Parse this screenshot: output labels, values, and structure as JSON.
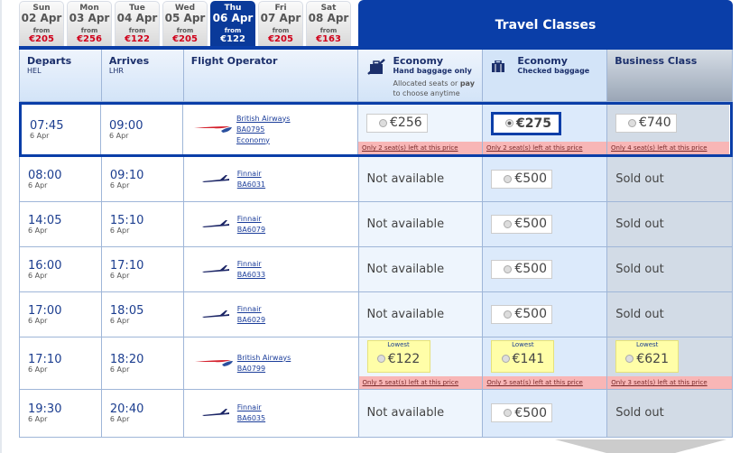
{
  "date_tabs": [
    {
      "day": "Sun",
      "date": "02 Apr",
      "from": "from",
      "price": "€205"
    },
    {
      "day": "Mon",
      "date": "03 Apr",
      "from": "from",
      "price": "€256"
    },
    {
      "day": "Tue",
      "date": "04 Apr",
      "from": "from",
      "price": "€122"
    },
    {
      "day": "Wed",
      "date": "05 Apr",
      "from": "from",
      "price": "€205"
    },
    {
      "day": "Thu",
      "date": "06 Apr",
      "from": "from",
      "price": "€122",
      "selected": true
    },
    {
      "day": "Fri",
      "date": "07 Apr",
      "from": "from",
      "price": "€205"
    },
    {
      "day": "Sat",
      "date": "08 Apr",
      "from": "from",
      "price": "€163"
    }
  ],
  "travel_classes_title": "Travel Classes",
  "headers": {
    "departs": "Departs",
    "departs_code": "HEL",
    "arrives": "Arrives",
    "arrives_code": "LHR",
    "operator": "Flight Operator",
    "econ_hand": "Economy",
    "econ_hand_sub": "Hand baggage only",
    "econ_hand_note_1": "Allocated seats or ",
    "econ_hand_note_bold": "pay",
    "econ_hand_note_2": " to choose anytime",
    "econ_checked": "Economy",
    "econ_checked_sub": "Checked baggage",
    "business": "Business Class"
  },
  "lowest_label": "Lowest",
  "flights": [
    {
      "dep": "07:45",
      "dep_date": "6 Apr",
      "arr": "09:00",
      "arr_date": "6 Apr",
      "airline": "British Airways",
      "flight": "BA0795",
      "cabin": "Economy",
      "logo": "ba",
      "selected": true,
      "hand": {
        "price": "€256",
        "warn": "Only 2 seat(s) left at this price"
      },
      "checked": {
        "price": "€275",
        "checked": true,
        "warn": "Only 2 seat(s) left at this price"
      },
      "business": {
        "price": "€740",
        "warn": "Only 4 seat(s) left at this price"
      }
    },
    {
      "dep": "08:00",
      "dep_date": "6 Apr",
      "arr": "09:10",
      "arr_date": "6 Apr",
      "airline": "Finnair",
      "flight": "BA6031",
      "logo": "ay",
      "hand": {
        "text": "Not available"
      },
      "checked": {
        "price": "€500"
      },
      "business": {
        "text": "Sold out"
      }
    },
    {
      "dep": "14:05",
      "dep_date": "6 Apr",
      "arr": "15:10",
      "arr_date": "6 Apr",
      "airline": "Finnair",
      "flight": "BA6079",
      "logo": "ay",
      "hand": {
        "text": "Not available"
      },
      "checked": {
        "price": "€500"
      },
      "business": {
        "text": "Sold out"
      }
    },
    {
      "dep": "16:00",
      "dep_date": "6 Apr",
      "arr": "17:10",
      "arr_date": "6 Apr",
      "airline": "Finnair",
      "flight": "BA6033",
      "logo": "ay",
      "hand": {
        "text": "Not available"
      },
      "checked": {
        "price": "€500"
      },
      "business": {
        "text": "Sold out"
      }
    },
    {
      "dep": "17:00",
      "dep_date": "6 Apr",
      "arr": "18:05",
      "arr_date": "6 Apr",
      "airline": "Finnair",
      "flight": "BA6029",
      "logo": "ay",
      "hand": {
        "text": "Not available"
      },
      "checked": {
        "price": "€500"
      },
      "business": {
        "text": "Sold out"
      }
    },
    {
      "dep": "17:10",
      "dep_date": "6 Apr",
      "arr": "18:20",
      "arr_date": "6 Apr",
      "airline": "British Airways",
      "flight": "BA0799",
      "logo": "ba",
      "hand": {
        "price": "€122",
        "lowest": true,
        "warn": "Only 5 seat(s) left at this price"
      },
      "checked": {
        "price": "€141",
        "lowest": true,
        "warn": "Only 5 seat(s) left at this price"
      },
      "business": {
        "price": "€621",
        "lowest": true,
        "warn": "Only 3 seat(s) left at this price"
      }
    },
    {
      "dep": "19:30",
      "dep_date": "6 Apr",
      "arr": "20:40",
      "arr_date": "6 Apr",
      "airline": "Finnair",
      "flight": "BA6035",
      "logo": "ay",
      "hand": {
        "text": "Not available"
      },
      "checked": {
        "price": "€500"
      },
      "business": {
        "text": "Sold out"
      }
    }
  ]
}
